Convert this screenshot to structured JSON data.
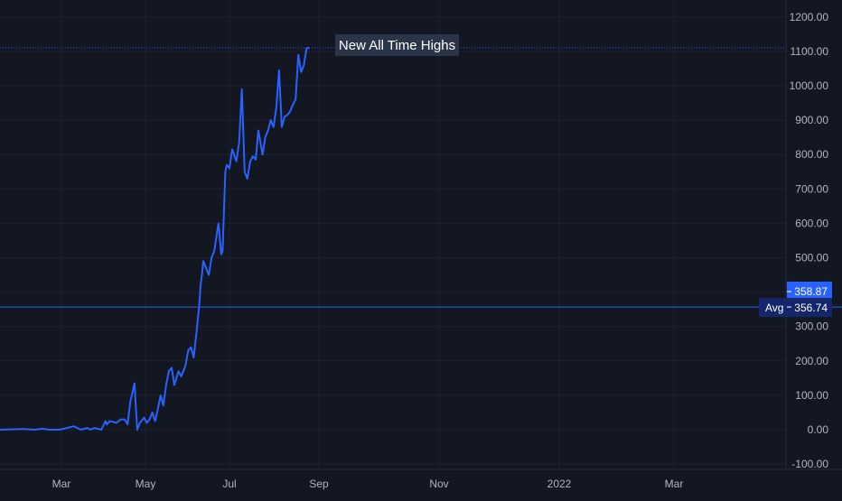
{
  "colors": {
    "background": "#131722",
    "grid": "#1e2230",
    "axis_text": "#b2b5be",
    "series": "#2962ff",
    "price_badge": "#2962ff",
    "avg_badge": "#142569",
    "annotation_bg": "#2a3548",
    "annotation_text": "#ffffff"
  },
  "chart_data": {
    "type": "line",
    "title": "",
    "xlabel": "",
    "ylabel": "",
    "ylim": [
      -100,
      1200
    ],
    "x_tick_labels": [
      "Mar",
      "May",
      "Jul",
      "Sep",
      "Nov",
      "2022",
      "Mar"
    ],
    "y_tick_labels": [
      "1200.00",
      "1100.00",
      "1000.00",
      "900.00",
      "800.00",
      "700.00",
      "600.00",
      "500.00",
      "400.00",
      "300.00",
      "200.00",
      "100.00",
      "0.00",
      "-100.00"
    ],
    "y_ticks": [
      1200,
      1100,
      1000,
      900,
      800,
      700,
      600,
      500,
      400,
      300,
      200,
      100,
      0,
      -100
    ],
    "grid": true,
    "series": [
      {
        "x": [
          "2021-01-01",
          "2021-01-15",
          "2021-02-01",
          "2021-02-10",
          "2021-02-15",
          "2021-02-20",
          "2021-02-25",
          "2021-03-01",
          "2021-03-10",
          "2021-03-15",
          "2021-03-20",
          "2021-03-22",
          "2021-03-25",
          "2021-03-30",
          "2021-04-02",
          "2021-04-03",
          "2021-04-05",
          "2021-04-10",
          "2021-04-13",
          "2021-04-16",
          "2021-04-18",
          "2021-04-20",
          "2021-04-23",
          "2021-04-25",
          "2021-04-27",
          "2021-04-30",
          "2021-05-02",
          "2021-05-04",
          "2021-05-06",
          "2021-05-08",
          "2021-05-10",
          "2021-05-12",
          "2021-05-14",
          "2021-05-16",
          "2021-05-18",
          "2021-05-20",
          "2021-05-22",
          "2021-05-25",
          "2021-05-27",
          "2021-05-30",
          "2021-06-01",
          "2021-06-03",
          "2021-06-05",
          "2021-06-07",
          "2021-06-09",
          "2021-06-10",
          "2021-06-11",
          "2021-06-12",
          "2021-06-14",
          "2021-06-16",
          "2021-06-18",
          "2021-06-20",
          "2021-06-23",
          "2021-06-25",
          "2021-06-26",
          "2021-06-28",
          "2021-06-29",
          "2021-07-01",
          "2021-07-03",
          "2021-07-06",
          "2021-07-08",
          "2021-07-10",
          "2021-07-12",
          "2021-07-14",
          "2021-07-16",
          "2021-07-18",
          "2021-07-20",
          "2021-07-22",
          "2021-07-25",
          "2021-07-27",
          "2021-07-29",
          "2021-07-31",
          "2021-08-02",
          "2021-08-04",
          "2021-08-06",
          "2021-08-08",
          "2021-08-10",
          "2021-08-12",
          "2021-08-14",
          "2021-08-16",
          "2021-08-18",
          "2021-08-20",
          "2021-08-22",
          "2021-08-24",
          "2021-08-26",
          "2021-08-28"
        ],
        "values": [
          0,
          0,
          2,
          0,
          3,
          0,
          0,
          1,
          10,
          0,
          5,
          0,
          5,
          0,
          25,
          15,
          25,
          20,
          30,
          30,
          15,
          80,
          135,
          0,
          20,
          35,
          20,
          30,
          50,
          25,
          60,
          100,
          70,
          130,
          170,
          180,
          130,
          170,
          155,
          185,
          230,
          240,
          210,
          280,
          360,
          420,
          450,
          490,
          470,
          450,
          500,
          520,
          600,
          510,
          520,
          750,
          770,
          760,
          815,
          780,
          835,
          990,
          750,
          730,
          780,
          795,
          785,
          870,
          800,
          850,
          870,
          900,
          880,
          935,
          1045,
          880,
          910,
          915,
          925,
          945,
          960,
          1090,
          1040,
          1060,
          1110,
          1110
        ]
      }
    ],
    "annotations": {
      "label": "New All Time Highs",
      "reference_line": 1110,
      "avg_line": 356.74
    },
    "price_label": "358.87",
    "avg_label": "Avg",
    "avg_value_label": "356.74"
  }
}
